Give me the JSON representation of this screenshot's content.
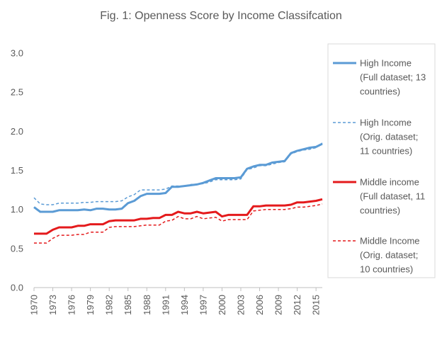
{
  "chart_data": {
    "type": "line",
    "title": "Fig. 1: Openness Score by Income Classifcation",
    "xlabel": "",
    "ylabel": "",
    "ylim": [
      0,
      3
    ],
    "yticks": [
      "0.0",
      "0.5",
      "1.0",
      "1.5",
      "2.0",
      "2.5",
      "3.0"
    ],
    "xticks": [
      "1970",
      "1973",
      "1976",
      "1979",
      "1982",
      "1985",
      "1988",
      "1991",
      "1994",
      "1997",
      "2000",
      "2003",
      "2006",
      "2009",
      "2012",
      "2015"
    ],
    "grid": false,
    "legend_position": "right",
    "x": [
      1970,
      1971,
      1972,
      1973,
      1974,
      1975,
      1976,
      1977,
      1978,
      1979,
      1980,
      1981,
      1982,
      1983,
      1984,
      1985,
      1986,
      1987,
      1988,
      1989,
      1990,
      1991,
      1992,
      1993,
      1994,
      1995,
      1996,
      1997,
      1998,
      1999,
      2000,
      2001,
      2002,
      2003,
      2004,
      2005,
      2006,
      2007,
      2008,
      2009,
      2010,
      2011,
      2012,
      2013,
      2014,
      2015,
      2016
    ],
    "series": [
      {
        "name": "High Income (Full dataset; 13 countries)",
        "legend_lines": [
          "High Income",
          "(Full dataset; 13",
          "countries)"
        ],
        "color": "#5B9BD5",
        "style": "solid",
        "width": 3,
        "values": [
          1.03,
          0.97,
          0.97,
          0.97,
          0.99,
          0.99,
          0.99,
          0.99,
          1.0,
          0.99,
          1.01,
          1.01,
          1.0,
          1.0,
          1.01,
          1.08,
          1.11,
          1.17,
          1.2,
          1.2,
          1.2,
          1.21,
          1.29,
          1.29,
          1.3,
          1.31,
          1.32,
          1.34,
          1.37,
          1.4,
          1.4,
          1.4,
          1.4,
          1.41,
          1.52,
          1.55,
          1.57,
          1.57,
          1.6,
          1.61,
          1.62,
          1.72,
          1.75,
          1.77,
          1.79,
          1.8,
          1.84
        ]
      },
      {
        "name": "High Income (Orig. dataset; 11 countries)",
        "legend_lines": [
          "High Income",
          "(Orig. dataset;",
          "11 countries)"
        ],
        "color": "#5B9BD5",
        "style": "dashed",
        "width": 1.5,
        "values": [
          1.15,
          1.07,
          1.06,
          1.06,
          1.08,
          1.08,
          1.08,
          1.08,
          1.09,
          1.09,
          1.1,
          1.1,
          1.1,
          1.1,
          1.11,
          1.16,
          1.19,
          1.25,
          1.25,
          1.25,
          1.25,
          1.26,
          1.3,
          1.3,
          1.3,
          1.32,
          1.32,
          1.33,
          1.35,
          1.38,
          1.38,
          1.38,
          1.38,
          1.39,
          1.51,
          1.53,
          1.56,
          1.56,
          1.58,
          1.6,
          1.61,
          1.71,
          1.74,
          1.76,
          1.77,
          1.79,
          1.85
        ]
      },
      {
        "name": "Middle income (Full dataset, 11 countries)",
        "legend_lines": [
          "Middle income",
          "(Full dataset, 11",
          "countries)"
        ],
        "color": "#E41A1C",
        "style": "solid",
        "width": 3,
        "values": [
          0.69,
          0.69,
          0.69,
          0.74,
          0.77,
          0.77,
          0.77,
          0.79,
          0.79,
          0.81,
          0.81,
          0.81,
          0.85,
          0.86,
          0.86,
          0.86,
          0.86,
          0.88,
          0.88,
          0.89,
          0.89,
          0.93,
          0.93,
          0.97,
          0.95,
          0.95,
          0.97,
          0.95,
          0.96,
          0.97,
          0.91,
          0.93,
          0.93,
          0.93,
          0.93,
          1.04,
          1.04,
          1.05,
          1.05,
          1.05,
          1.05,
          1.06,
          1.09,
          1.09,
          1.1,
          1.11,
          1.13
        ]
      },
      {
        "name": "Middle Income (Orig. dataset; 10 countries)",
        "legend_lines": [
          "Middle Income",
          "(Orig. dataset;",
          "10 countries)"
        ],
        "color": "#E41A1C",
        "style": "dashed",
        "width": 1.5,
        "values": [
          0.57,
          0.57,
          0.57,
          0.63,
          0.67,
          0.67,
          0.67,
          0.68,
          0.68,
          0.71,
          0.71,
          0.71,
          0.77,
          0.78,
          0.78,
          0.78,
          0.78,
          0.79,
          0.8,
          0.8,
          0.8,
          0.85,
          0.86,
          0.91,
          0.88,
          0.88,
          0.91,
          0.88,
          0.89,
          0.9,
          0.85,
          0.87,
          0.87,
          0.87,
          0.87,
          0.98,
          0.99,
          1.0,
          1.0,
          1.0,
          1.0,
          1.01,
          1.03,
          1.03,
          1.04,
          1.05,
          1.07
        ]
      }
    ]
  }
}
